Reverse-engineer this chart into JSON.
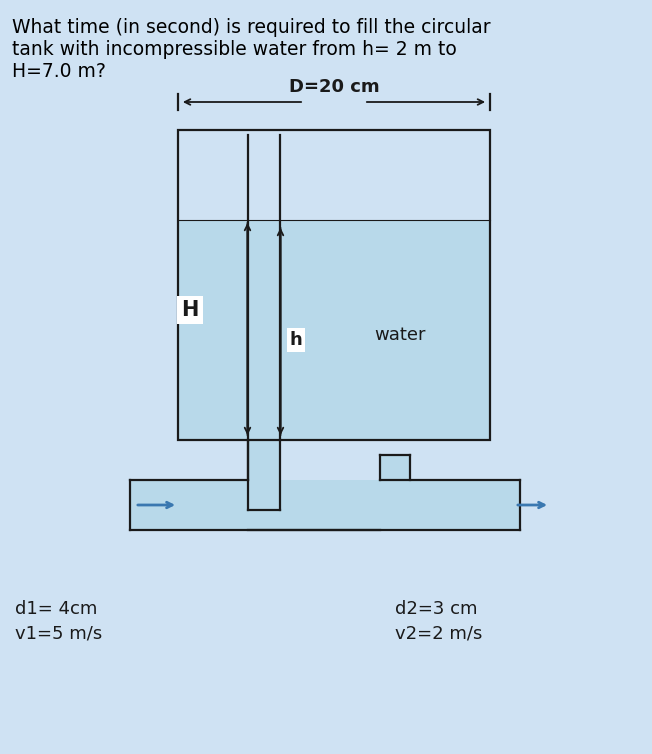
{
  "background_color": "#cfe2f3",
  "question_text": "What time (in second) is required to fill the circular\ntank with incompressible water from h= 2 m to\nH=7.0 m?",
  "question_fontsize": 13.5,
  "water_color": "#b8d9ea",
  "pipe_fill_color": "#b8d9ea",
  "H_label": "H",
  "h_label": "h",
  "water_label": "water",
  "D_label": "D=20 cm",
  "d1_label": "d1= 4cm\nv1=5 m/s",
  "d2_label": "d2=3 cm\nv2=2 m/s",
  "lw": 1.6
}
